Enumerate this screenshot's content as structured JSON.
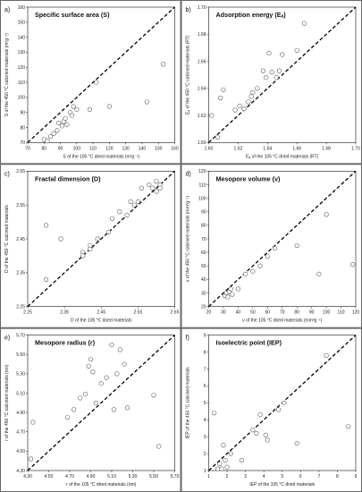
{
  "chart_data": [
    {
      "type": "scatter",
      "panel_label": "a)",
      "title": "Specific surface area (S)",
      "xlabel": "S of the 105 °C dried materials (m²g⁻¹)",
      "ylabel": "S of the 450 °C calcined materials (m²g⁻¹)",
      "xlim": [
        70,
        160
      ],
      "ylim": [
        70,
        160
      ],
      "xticks": [
        "70",
        "80",
        "90",
        "100",
        "110",
        "120",
        "130",
        "140",
        "150",
        "160"
      ],
      "yticks": [
        "70",
        "80",
        "90",
        "100",
        "110",
        "120",
        "130",
        "140",
        "150",
        "160"
      ],
      "reference_line": "1:1",
      "x": [
        80,
        82,
        84,
        86,
        88,
        89,
        91,
        92,
        93,
        94,
        96,
        97,
        98,
        100,
        108,
        112,
        120,
        143,
        153
      ],
      "y": [
        72,
        71,
        74,
        76,
        78,
        83,
        81,
        84,
        86,
        82,
        90,
        88,
        94,
        92,
        92,
        110,
        94,
        97,
        122
      ]
    },
    {
      "type": "scatter",
      "panel_label": "b)",
      "title": "Adsorption energy (Eₐ)",
      "xlabel": "Eₐ of the 105 °C dried materials (RT)",
      "ylabel": "Eₐ of the 450 °C calcined materials (RT)",
      "xlim": [
        1.6,
        1.7
      ],
      "ylim": [
        1.6,
        1.7
      ],
      "xticks": [
        "1.60",
        "1.62",
        "1.64",
        "1.66",
        "1.68",
        "1.70"
      ],
      "yticks": [
        "1.60",
        "1.62",
        "1.64",
        "1.66",
        "1.68",
        "1.70"
      ],
      "reference_line": "1:1",
      "x": [
        1.602,
        1.606,
        1.608,
        1.61,
        1.618,
        1.621,
        1.624,
        1.627,
        1.629,
        1.63,
        1.633,
        1.637,
        1.639,
        1.641,
        1.643,
        1.646,
        1.648,
        1.65,
        1.66,
        1.665
      ],
      "y": [
        1.62,
        1.604,
        1.633,
        1.639,
        1.624,
        1.627,
        1.625,
        1.63,
        1.634,
        1.637,
        1.64,
        1.653,
        1.648,
        1.666,
        1.652,
        1.648,
        1.653,
        1.665,
        1.668,
        1.688
      ]
    },
    {
      "type": "scatter",
      "panel_label": "c)",
      "title": "Fractal dimension (D)",
      "xlabel": "D of the 105 °C dried materials",
      "ylabel": "D of the 450 °C calcined materials",
      "xlim": [
        2.25,
        2.65
      ],
      "ylim": [
        2.25,
        2.65
      ],
      "xticks": [
        "2.25",
        "2.35",
        "2.45",
        "2.55",
        "2.65"
      ],
      "yticks": [
        "2.25",
        "2.35",
        "2.45",
        "2.55",
        "2.65"
      ],
      "reference_line": "1:1",
      "x": [
        2.3,
        2.3,
        2.34,
        2.4,
        2.4,
        2.42,
        2.42,
        2.44,
        2.47,
        2.48,
        2.5,
        2.52,
        2.53,
        2.54,
        2.55,
        2.56,
        2.58,
        2.59,
        2.6,
        2.6,
        2.61,
        2.61
      ],
      "y": [
        2.49,
        2.33,
        2.45,
        2.41,
        2.4,
        2.43,
        2.42,
        2.45,
        2.47,
        2.51,
        2.53,
        2.52,
        2.56,
        2.55,
        2.56,
        2.6,
        2.61,
        2.6,
        2.59,
        2.62,
        2.61,
        2.6
      ]
    },
    {
      "type": "scatter",
      "panel_label": "d)",
      "title": "Mesopore volume (v)",
      "xlabel": "v of the 105 °C dried materials (mm³g⁻¹)",
      "ylabel": "v of the 450 °C calcined materials (mm³g⁻¹)",
      "xlim": [
        20,
        120
      ],
      "ylim": [
        20,
        120
      ],
      "xticks": [
        "20",
        "30",
        "40",
        "50",
        "60",
        "70",
        "80",
        "90",
        "100",
        "110",
        "120"
      ],
      "yticks": [
        "20",
        "30",
        "40",
        "50",
        "60",
        "70",
        "80",
        "90",
        "100",
        "110",
        "120"
      ],
      "reference_line": "1:1",
      "x": [
        31,
        32,
        33,
        34,
        35,
        36,
        40,
        45,
        50,
        55,
        60,
        65,
        80,
        95,
        100,
        118
      ],
      "y": [
        28,
        30,
        27,
        31,
        33,
        29,
        33,
        44,
        46,
        50,
        57,
        63,
        65,
        44,
        88,
        51
      ]
    },
    {
      "type": "scatter",
      "panel_label": "e)",
      "title": "Mesopore radius (r)",
      "xlabel": "r of the 105 °C dried materials (nm)",
      "ylabel": "r of the 450 °C calcined materials (nm)",
      "xlim": [
        4.3,
        5.7
      ],
      "ylim": [
        4.3,
        5.7
      ],
      "xticks": [
        "4.30",
        "4.50",
        "4.70",
        "4.90",
        "5.10",
        "5.30",
        "5.50",
        "5.70"
      ],
      "yticks": [
        "4.30",
        "4.50",
        "4.70",
        "4.90",
        "5.10",
        "5.30",
        "5.50",
        "5.70"
      ],
      "reference_line": "1:1",
      "x": [
        4.33,
        4.35,
        4.68,
        4.74,
        4.8,
        4.85,
        4.88,
        4.9,
        4.92,
        4.95,
        5.0,
        5.05,
        5.1,
        5.12,
        5.15,
        5.18,
        5.22,
        5.25,
        5.5,
        5.55
      ],
      "y": [
        4.42,
        4.8,
        4.85,
        4.93,
        5.05,
        5.09,
        5.38,
        5.45,
        5.32,
        5.0,
        5.2,
        5.26,
        5.6,
        4.93,
        5.3,
        5.55,
        5.4,
        4.95,
        5.08,
        4.55
      ]
    },
    {
      "type": "scatter",
      "panel_label": "f)",
      "title": "Isoelectric point (IEP)",
      "xlabel": "IEP of the 105 °C dried materials",
      "ylabel": "IEP of the 450 °C calcined materials",
      "xlim": [
        1,
        9
      ],
      "ylim": [
        1,
        9
      ],
      "xticks": [
        "1",
        "2",
        "3",
        "4",
        "5",
        "6",
        "7",
        "8",
        "9"
      ],
      "yticks": [
        "1",
        "2",
        "3",
        "4",
        "5",
        "6",
        "7",
        "8",
        "9"
      ],
      "reference_line": "1:1",
      "x": [
        1.3,
        1.5,
        1.6,
        1.7,
        1.8,
        1.9,
        2.0,
        2.2,
        2.8,
        3.4,
        3.6,
        3.8,
        4.1,
        4.2,
        4.8,
        5.1,
        5.8,
        7.4,
        8.6
      ],
      "y": [
        4.4,
        1.1,
        1.4,
        1.1,
        2.5,
        1.6,
        1.2,
        2.0,
        1.6,
        3.4,
        3.2,
        4.3,
        3.1,
        2.8,
        4.6,
        5.0,
        2.6,
        7.8,
        3.6
      ]
    }
  ]
}
